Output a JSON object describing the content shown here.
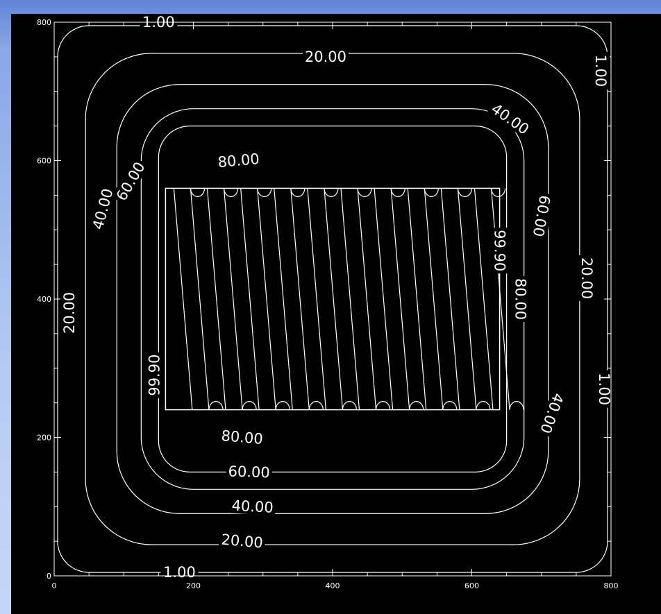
{
  "chart_data": {
    "type": "contour",
    "title": "",
    "xlabel": "",
    "ylabel": "",
    "xlim": [
      0,
      800
    ],
    "ylim": [
      0,
      800
    ],
    "x_ticks": [
      "0",
      "200",
      "400",
      "600",
      "800"
    ],
    "y_ticks": [
      "0",
      "200",
      "400",
      "600",
      "800"
    ],
    "levels": [
      {
        "value": 1.0,
        "label": "1.00",
        "inset": 5,
        "corner_radius": 45
      },
      {
        "value": 20.0,
        "label": "20.00",
        "inset": 45,
        "corner_radius": 95
      },
      {
        "value": 40.0,
        "label": "40.00",
        "inset": 90,
        "corner_radius": 90
      },
      {
        "value": 60.0,
        "label": "60.00",
        "inset": 125,
        "corner_radius": 75
      },
      {
        "value": 80.0,
        "label": "80.00",
        "inset": 150,
        "corner_radius": 45
      }
    ],
    "inner_region": {
      "value": 99.9,
      "label": "99.90",
      "x_range": [
        160,
        640
      ],
      "y_range": [
        240,
        560
      ],
      "stripe_count": 10
    },
    "labels": [
      {
        "text": "1.00",
        "x": 150,
        "y": 800,
        "rotate": 0
      },
      {
        "text": "1.00",
        "x": 180,
        "y": 5,
        "rotate": 0
      },
      {
        "text": "1.00",
        "x": 790,
        "y": 270,
        "rotate": 90
      },
      {
        "text": "1.00",
        "x": 785,
        "y": 730,
        "rotate": 90
      },
      {
        "text": "20.00",
        "x": 390,
        "y": 750,
        "rotate": 0
      },
      {
        "text": "20.00",
        "x": 270,
        "y": 50,
        "rotate": 5
      },
      {
        "text": "20.00",
        "x": 22,
        "y": 380,
        "rotate": -90
      },
      {
        "text": "20.00",
        "x": 765,
        "y": 430,
        "rotate": 90
      },
      {
        "text": "40.00",
        "x": 285,
        "y": 100,
        "rotate": 3
      },
      {
        "text": "40.00",
        "x": 70,
        "y": 530,
        "rotate": -75
      },
      {
        "text": "40.00",
        "x": 655,
        "y": 660,
        "rotate": 35
      },
      {
        "text": "40.00",
        "x": 715,
        "y": 235,
        "rotate": 110
      },
      {
        "text": "60.00",
        "x": 280,
        "y": 150,
        "rotate": 2
      },
      {
        "text": "60.00",
        "x": 110,
        "y": 570,
        "rotate": -60
      },
      {
        "text": "60.00",
        "x": 700,
        "y": 520,
        "rotate": 100
      },
      {
        "text": "80.00",
        "x": 270,
        "y": 200,
        "rotate": 5
      },
      {
        "text": "80.00",
        "x": 265,
        "y": 600,
        "rotate": -5
      },
      {
        "text": "80.00",
        "x": 670,
        "y": 400,
        "rotate": 90
      },
      {
        "text": "99.90",
        "x": 144,
        "y": 290,
        "rotate": -90
      },
      {
        "text": "99.90",
        "x": 640,
        "y": 470,
        "rotate": 90
      }
    ]
  }
}
